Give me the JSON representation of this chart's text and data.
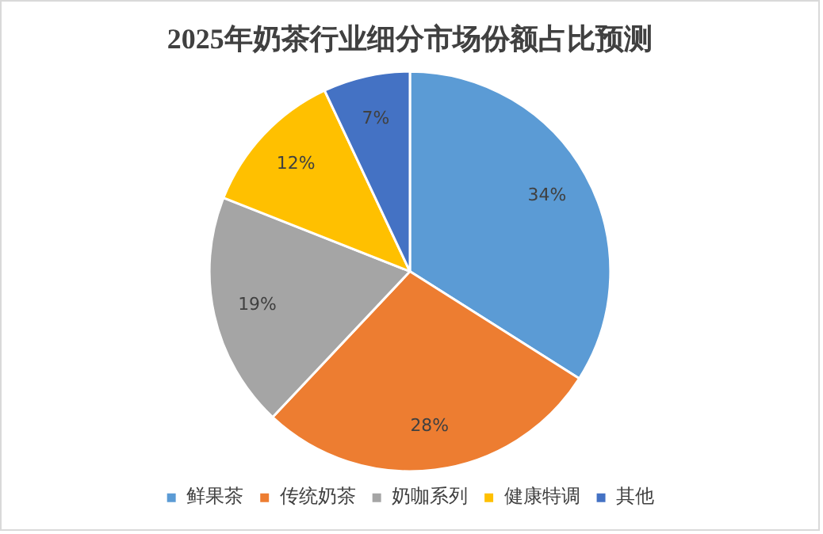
{
  "chart_data": {
    "type": "pie",
    "title": "2025年奶茶行业细分市场份额占比预测",
    "categories": [
      "鲜果茶",
      "传统奶茶",
      "奶咖系列",
      "健康特调",
      "其他"
    ],
    "values": [
      34,
      28,
      19,
      12,
      7
    ],
    "colors": [
      "#5b9bd5",
      "#ed7d31",
      "#a5a5a5",
      "#ffc000",
      "#4472c4"
    ],
    "value_labels": [
      "34%",
      "28%",
      "19%",
      "12%",
      "7%"
    ],
    "legend": "bottom"
  }
}
